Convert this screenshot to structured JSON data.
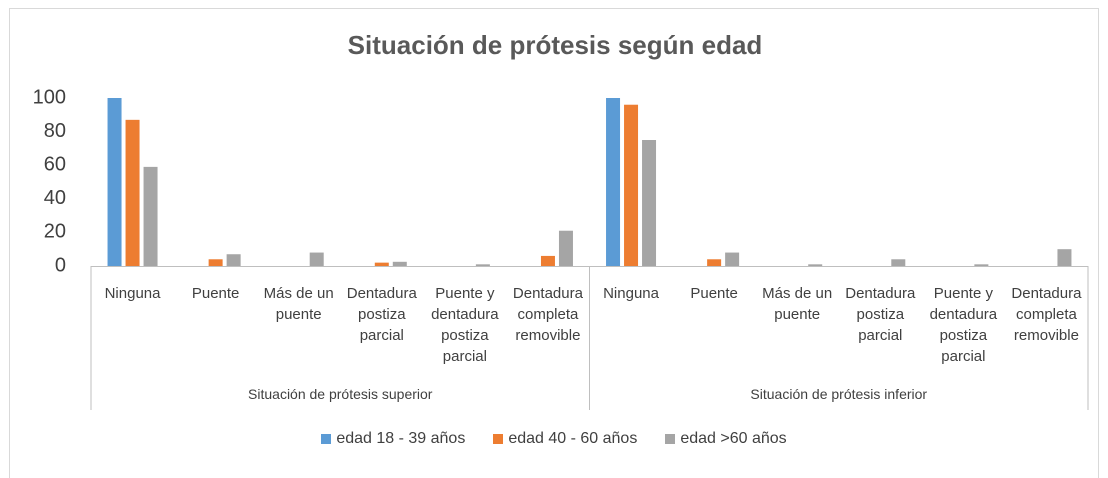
{
  "chart_data": {
    "type": "bar",
    "title": "Situación de prótesis según edad",
    "categories": [
      "Ninguna",
      "Puente",
      "Más de un puente",
      "Dentadura postiza parcial",
      "Puente y dentadura postiza parcial",
      "Dentadura completa removible",
      "Ninguna",
      "Puente",
      "Más de un puente",
      "Dentadura postiza parcial",
      "Puente y dentadura postiza parcial",
      "Dentadura completa removible"
    ],
    "group_labels": [
      "Situación de prótesis superior",
      "Situación de prótesis inferior"
    ],
    "series": [
      {
        "name": "edad 18 - 39 años",
        "color": "#5b9bd5",
        "values": [
          100,
          0,
          0,
          0,
          0,
          0,
          100,
          0,
          0,
          0,
          0,
          0
        ]
      },
      {
        "name": "edad 40 - 60 años",
        "color": "#ed7d31",
        "values": [
          87,
          4,
          0,
          2,
          0,
          6,
          96,
          4,
          0,
          0,
          0,
          0
        ]
      },
      {
        "name": "edad >60 años",
        "color": "#a5a5a5",
        "values": [
          59,
          7,
          8,
          2.5,
          1,
          21,
          75,
          8,
          1,
          4,
          1,
          10
        ]
      }
    ],
    "ylim": [
      0,
      100
    ],
    "yticks": [
      0,
      20,
      40,
      60,
      80,
      100
    ],
    "grid": false,
    "legend": "bottom"
  }
}
